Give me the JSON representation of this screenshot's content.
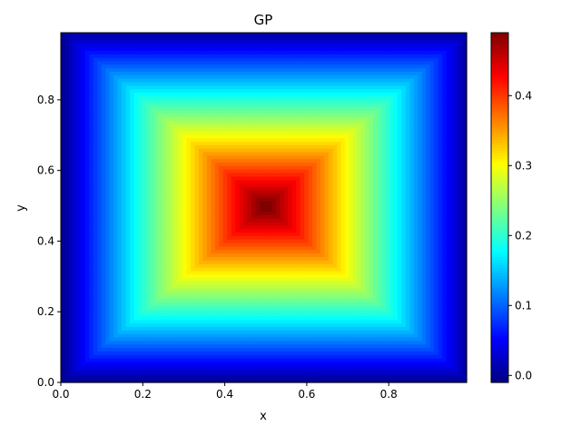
{
  "chart_data": {
    "type": "heatmap",
    "title": "GP",
    "xlabel": "x",
    "ylabel": "y",
    "xlim": [
      0,
      0.99
    ],
    "ylim": [
      0,
      0.99
    ],
    "x_ticks": [
      {
        "value": 0.0,
        "label": "0.0"
      },
      {
        "value": 0.2,
        "label": "0.2"
      },
      {
        "value": 0.4,
        "label": "0.4"
      },
      {
        "value": 0.6,
        "label": "0.6"
      },
      {
        "value": 0.8,
        "label": "0.8"
      }
    ],
    "y_ticks": [
      {
        "value": 0.0,
        "label": "0.0"
      },
      {
        "value": 0.2,
        "label": "0.2"
      },
      {
        "value": 0.4,
        "label": "0.4"
      },
      {
        "value": 0.6,
        "label": "0.6"
      },
      {
        "value": 0.8,
        "label": "0.8"
      }
    ],
    "colormap": "jet",
    "colorbar": {
      "range": [
        -0.01,
        0.49
      ],
      "ticks": [
        {
          "value": 0.0,
          "label": "0.0"
        },
        {
          "value": 0.1,
          "label": "0.1"
        },
        {
          "value": 0.2,
          "label": "0.2"
        },
        {
          "value": 0.3,
          "label": "0.3"
        },
        {
          "value": 0.4,
          "label": "0.4"
        }
      ]
    },
    "grid": {
      "n": 100,
      "step": 0.01,
      "function": "min(x, 1-x, y, 1-y)"
    }
  }
}
